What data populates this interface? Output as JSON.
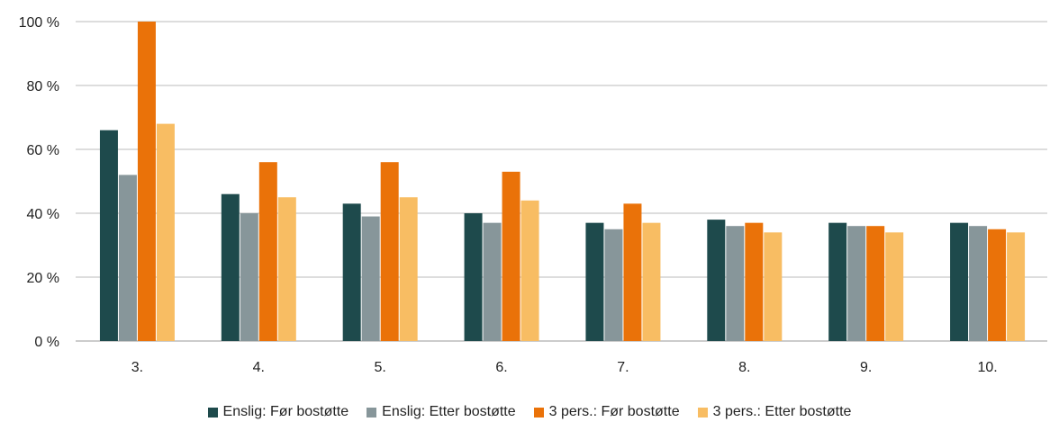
{
  "chart_data": {
    "type": "bar",
    "categories": [
      "3.",
      "4.",
      "5.",
      "6.",
      "7.",
      "8.",
      "9.",
      "10."
    ],
    "series": [
      {
        "name": "Enslig: Før bostøtte",
        "color": "#1e4a4c",
        "values": [
          66,
          46,
          43,
          40,
          37,
          38,
          37,
          37
        ]
      },
      {
        "name": "Enslig: Etter bostøtte",
        "color": "#87969a",
        "values": [
          52,
          40,
          39,
          37,
          35,
          36,
          36,
          36
        ]
      },
      {
        "name": "3 pers.: Før bostøtte",
        "color": "#ea7209",
        "values": [
          100,
          56,
          56,
          53,
          43,
          37,
          36,
          35
        ]
      },
      {
        "name": "3 pers.: Etter bostøtte",
        "color": "#f8bd63",
        "values": [
          68,
          45,
          45,
          44,
          37,
          34,
          34,
          34
        ]
      }
    ],
    "yticks": [
      "0 %",
      "20 %",
      "40 %",
      "60 %",
      "80 %",
      "100 %"
    ],
    "ylim": [
      0,
      100
    ],
    "grid": true,
    "legend_position": "bottom"
  }
}
